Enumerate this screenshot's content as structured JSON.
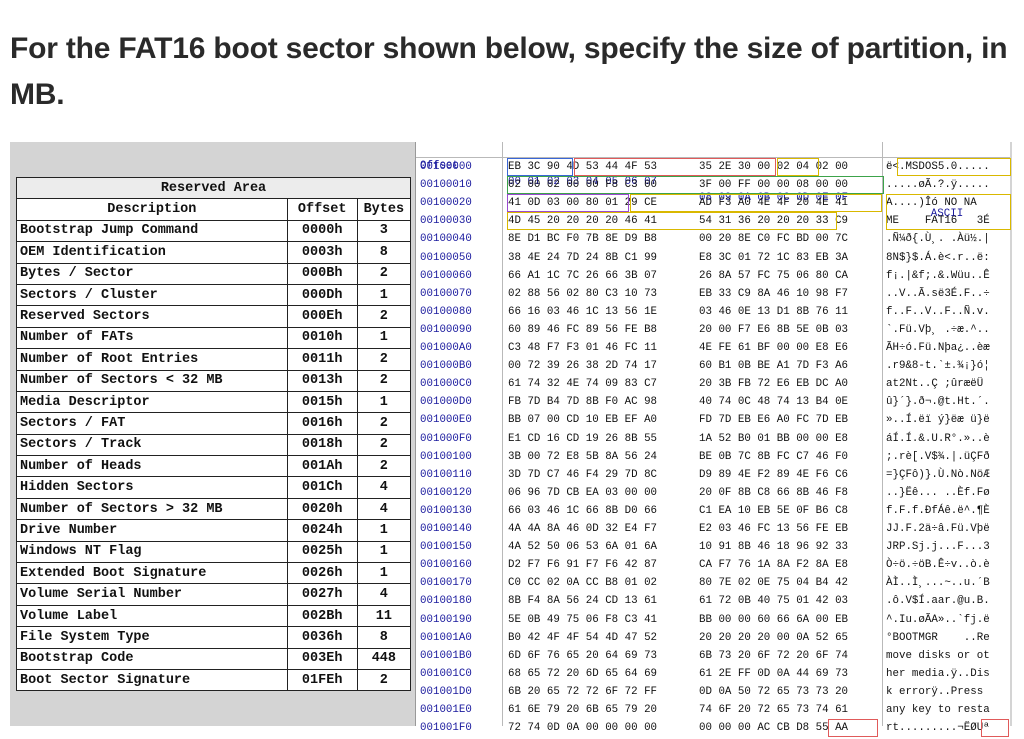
{
  "question": "For the FAT16 boot sector shown below, specify the size of partition, in MB.",
  "reserved_area": {
    "title": "Reserved Area",
    "headers": [
      "Description",
      "Offset",
      "Bytes"
    ],
    "rows": [
      [
        "Bootstrap Jump Command",
        "0000h",
        "3"
      ],
      [
        "OEM Identification",
        "0003h",
        "8"
      ],
      [
        "Bytes / Sector",
        "000Bh",
        "2"
      ],
      [
        "Sectors / Cluster",
        "000Dh",
        "1"
      ],
      [
        "Reserved Sectors",
        "000Eh",
        "2"
      ],
      [
        "Number of FATs",
        "0010h",
        "1"
      ],
      [
        "Number of Root Entries",
        "0011h",
        "2"
      ],
      [
        "Number of Sectors < 32 MB",
        "0013h",
        "2"
      ],
      [
        "Media Descriptor",
        "0015h",
        "1"
      ],
      [
        "Sectors / FAT",
        "0016h",
        "2"
      ],
      [
        "Sectors / Track",
        "0018h",
        "2"
      ],
      [
        "Number of Heads",
        "001Ah",
        "2"
      ],
      [
        "Hidden Sectors",
        "001Ch",
        "4"
      ],
      [
        "Number of Sectors > 32 MB",
        "0020h",
        "4"
      ],
      [
        "Drive Number",
        "0024h",
        "1"
      ],
      [
        "Windows NT Flag",
        "0025h",
        "1"
      ],
      [
        "Extended Boot Signature",
        "0026h",
        "1"
      ],
      [
        "Volume Serial Number",
        "0027h",
        "4"
      ],
      [
        "Volume Label",
        "002Bh",
        "11"
      ],
      [
        "File System Type",
        "0036h",
        "8"
      ],
      [
        "Bootstrap Code",
        "003Eh",
        "448"
      ],
      [
        "Boot Sector Signature",
        "01FEh",
        "2"
      ]
    ]
  },
  "hex_view": {
    "header": {
      "offset": "Offset",
      "bytes1": "00 01 02 03 04 05 06 07",
      "bytes2": "08 09 0A 0B 0C 0D 0E 0F",
      "ascii": "ASCII"
    },
    "rows": [
      {
        "off": "00100000",
        "b1": "EB 3C 90 4D 53 44 4F 53",
        "b2": "35 2E 30 00 02 04 02 00",
        "asc": "ë<.MSDOS5.0....."
      },
      {
        "off": "00100010",
        "b1": "02 00 02 00 00 F8 C3 00",
        "b2": "3F 00 FF 00 00 08 00 00",
        "asc": ".....øÃ.?.ÿ....."
      },
      {
        "off": "00100020",
        "b1": "41 0D 03 00 80 01 29 CE",
        "b2": "AD F3 A0 4E 4F 20 4E 41",
        "asc": "A....)Îó NO NA"
      },
      {
        "off": "00100030",
        "b1": "4D 45 20 20 20 20 46 41",
        "b2": "54 31 36 20 20 20 33 C9",
        "asc": "ME    FAT16   3É"
      },
      {
        "off": "00100040",
        "b1": "8E D1 BC F0 7B 8E D9 B8",
        "b2": "00 20 8E C0 FC BD 00 7C",
        "asc": ".Ñ¼ð{.Ù¸. .Àü½.|"
      },
      {
        "off": "00100050",
        "b1": "38 4E 24 7D 24 8B C1 99",
        "b2": "E8 3C 01 72 1C 83 EB 3A",
        "asc": "8N$}$.Á.è<.r..ë:"
      },
      {
        "off": "00100060",
        "b1": "66 A1 1C 7C 26 66 3B 07",
        "b2": "26 8A 57 FC 75 06 80 CA",
        "asc": "f¡.|&f;.&.Wüu..Ê"
      },
      {
        "off": "00100070",
        "b1": "02 88 56 02 80 C3 10 73",
        "b2": "EB 33 C9 8A 46 10 98 F7",
        "asc": "..V..Ã.së3É.F..÷"
      },
      {
        "off": "00100080",
        "b1": "66 16 03 46 1C 13 56 1E",
        "b2": "03 46 0E 13 D1 8B 76 11",
        "asc": "f..F..V..F..Ñ.v."
      },
      {
        "off": "00100090",
        "b1": "60 89 46 FC 89 56 FE B8",
        "b2": "20 00 F7 E6 8B 5E 0B 03",
        "asc": "`.Fü.Vþ¸ .÷æ.^.."
      },
      {
        "off": "001000A0",
        "b1": "C3 48 F7 F3 01 46 FC 11",
        "b2": "4E FE 61 BF 00 00 E8 E6",
        "asc": "ÃH÷ó.Fü.Nþa¿..èæ"
      },
      {
        "off": "001000B0",
        "b1": "00 72 39 26 38 2D 74 17",
        "b2": "60 B1 0B BE A1 7D F3 A6",
        "asc": ".r9&8-t.`±.¾¡}ó¦"
      },
      {
        "off": "001000C0",
        "b1": "61 74 32 4E 74 09 83 C7",
        "b2": "20 3B FB 72 E6 EB DC A0",
        "asc": "at2Nt..Ç ;ûræëÜ "
      },
      {
        "off": "001000D0",
        "b1": "FB 7D B4 7D 8B F0 AC 98",
        "b2": "40 74 0C 48 74 13 B4 0E",
        "asc": "û}´}.ð¬.@t.Ht.´."
      },
      {
        "off": "001000E0",
        "b1": "BB 07 00 CD 10 EB EF A0",
        "b2": "FD 7D EB E6 A0 FC 7D EB",
        "asc": "»..Í.ëï ý}ëæ ü}ë"
      },
      {
        "off": "001000F0",
        "b1": "E1 CD 16 CD 19 26 8B 55",
        "b2": "1A 52 B0 01 BB 00 00 E8",
        "asc": "áÍ.Í.&.U.R°.»..è"
      },
      {
        "off": "00100100",
        "b1": "3B 00 72 E8 5B 8A 56 24",
        "b2": "BE 0B 7C 8B FC C7 46 F0",
        "asc": ";.rè[.V$¾.|.üÇFð"
      },
      {
        "off": "00100110",
        "b1": "3D 7D C7 46 F4 29 7D 8C",
        "b2": "D9 89 4E F2 89 4E F6 C6",
        "asc": "=}ÇFô)}.Ù.Nò.NöÆ"
      },
      {
        "off": "00100120",
        "b1": "06 96 7D CB EA 03 00 00",
        "b2": "20 0F 8B C8 66 8B 46 F8",
        "asc": "..}Ëê... ..Èf.Fø"
      },
      {
        "off": "00100130",
        "b1": "66 03 46 1C 66 8B D0 66",
        "b2": "C1 EA 10 EB 5E 0F B6 C8",
        "asc": "f.F.f.ÐfÁê.ë^.¶È"
      },
      {
        "off": "00100140",
        "b1": "4A 4A 8A 46 0D 32 E4 F7",
        "b2": "E2 03 46 FC 13 56 FE EB",
        "asc": "JJ.F.2ä÷â.Fü.Vþë"
      },
      {
        "off": "00100150",
        "b1": "4A 52 50 06 53 6A 01 6A",
        "b2": "10 91 8B 46 18 96 92 33",
        "asc": "JRP.Sj.j...F...3"
      },
      {
        "off": "00100160",
        "b1": "D2 F7 F6 91 F7 F6 42 87",
        "b2": "CA F7 76 1A 8A F2 8A E8",
        "asc": "Ò÷ö.÷öB.Ê÷v..ò.è"
      },
      {
        "off": "00100170",
        "b1": "C0 CC 02 0A CC B8 01 02",
        "b2": "80 7E 02 0E 75 04 B4 42",
        "asc": "ÀÌ..Ì¸...~..u.´B"
      },
      {
        "off": "00100180",
        "b1": "8B F4 8A 56 24 CD 13 61",
        "b2": "61 72 0B 40 75 01 42 03",
        "asc": ".ô.V$Í.aar.@u.B."
      },
      {
        "off": "00100190",
        "b1": "5E 0B 49 75 06 F8 C3 41",
        "b2": "BB 00 00 60 66 6A 00 EB",
        "asc": "^.Iu.øÃA»..`fj.ë"
      },
      {
        "off": "001001A0",
        "b1": "B0 42 4F 4F 54 4D 47 52",
        "b2": "20 20 20 20 00 0A 52 65",
        "asc": "°BOOTMGR    ..Re"
      },
      {
        "off": "001001B0",
        "b1": "6D 6F 76 65 20 64 69 73",
        "b2": "6B 73 20 6F 72 20 6F 74",
        "asc": "move disks or ot"
      },
      {
        "off": "001001C0",
        "b1": "68 65 72 20 6D 65 64 69",
        "b2": "61 2E FF 0D 0A 44 69 73",
        "asc": "her media.ÿ..Dis"
      },
      {
        "off": "001001D0",
        "b1": "6B 20 65 72 72 6F 72 FF",
        "b2": "0D 0A 50 72 65 73 73 20",
        "asc": "k errorÿ..Press "
      },
      {
        "off": "001001E0",
        "b1": "61 6E 79 20 6B 65 79 20",
        "b2": "74 6F 20 72 65 73 74 61",
        "asc": "any key to resta"
      },
      {
        "off": "001001F0",
        "b1": "72 74 0D 0A 00 00 00 00",
        "b2": "00 00 00 AC CB D8 55 AA",
        "asc": "rt.........¬ËØUª"
      }
    ]
  },
  "colors": {
    "highlight_blue": "#3a66d6",
    "highlight_red": "#e05a5a",
    "highlight_yellow": "#d9b800",
    "highlight_green": "#3ca34a",
    "highlight_purple": "#9a4ad0",
    "offset_blue": "#1a1a9e"
  }
}
